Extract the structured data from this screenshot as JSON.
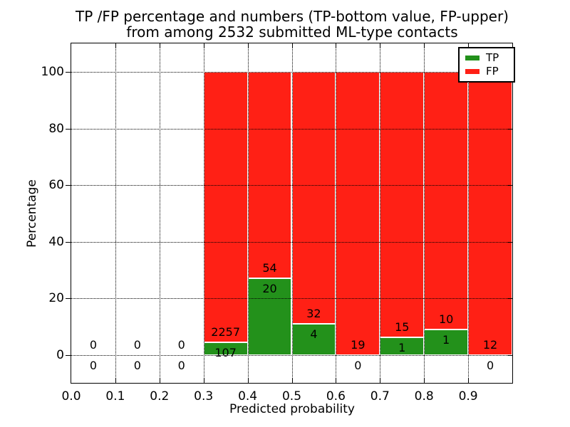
{
  "chart_data": {
    "type": "bar",
    "variant": "stacked-percentage-histogram",
    "title_line1": "TP /FP percentage and numbers (TP-bottom value, FP-upper)",
    "title_line2": "from among 2532 submitted ML-type contacts",
    "title": "TP /FP percentage and numbers (TP-bottom value, FP-upper)\nfrom among 2532 submitted ML-type contacts",
    "xlabel": "Predicted probability",
    "ylabel": "Percentage",
    "xlim": [
      0.0,
      1.0
    ],
    "ylim_display": [
      -10,
      110
    ],
    "x_tick_labels": [
      "0.0",
      "0.1",
      "0.2",
      "0.3",
      "0.4",
      "0.5",
      "0.6",
      "0.7",
      "0.8",
      "0.9"
    ],
    "y_tick_values": [
      0,
      20,
      40,
      60,
      80,
      100
    ],
    "grid": "dotted",
    "bin_edges": [
      0.0,
      0.1,
      0.2,
      0.3,
      0.4,
      0.5,
      0.6,
      0.7,
      0.8,
      0.9,
      1.0
    ],
    "series": [
      {
        "name": "TP",
        "color": "#23911b",
        "counts": [
          0,
          0,
          0,
          107,
          20,
          4,
          0,
          1,
          1,
          0
        ]
      },
      {
        "name": "FP",
        "color": "#ff2015",
        "counts": [
          0,
          0,
          0,
          2257,
          54,
          32,
          19,
          15,
          10,
          12
        ]
      }
    ],
    "tp_percent_per_bin": [
      0,
      0,
      0,
      4.53,
      27.03,
      11.11,
      0,
      6.25,
      9.09,
      0
    ],
    "total_contacts": 2532,
    "annotation_rule": "FP count above TP/FP boundary, TP count below boundary",
    "legend": {
      "position": "upper-right",
      "entries": [
        {
          "label": "TP",
          "color": "#23911b"
        },
        {
          "label": "FP",
          "color": "#ff2015"
        }
      ]
    }
  }
}
